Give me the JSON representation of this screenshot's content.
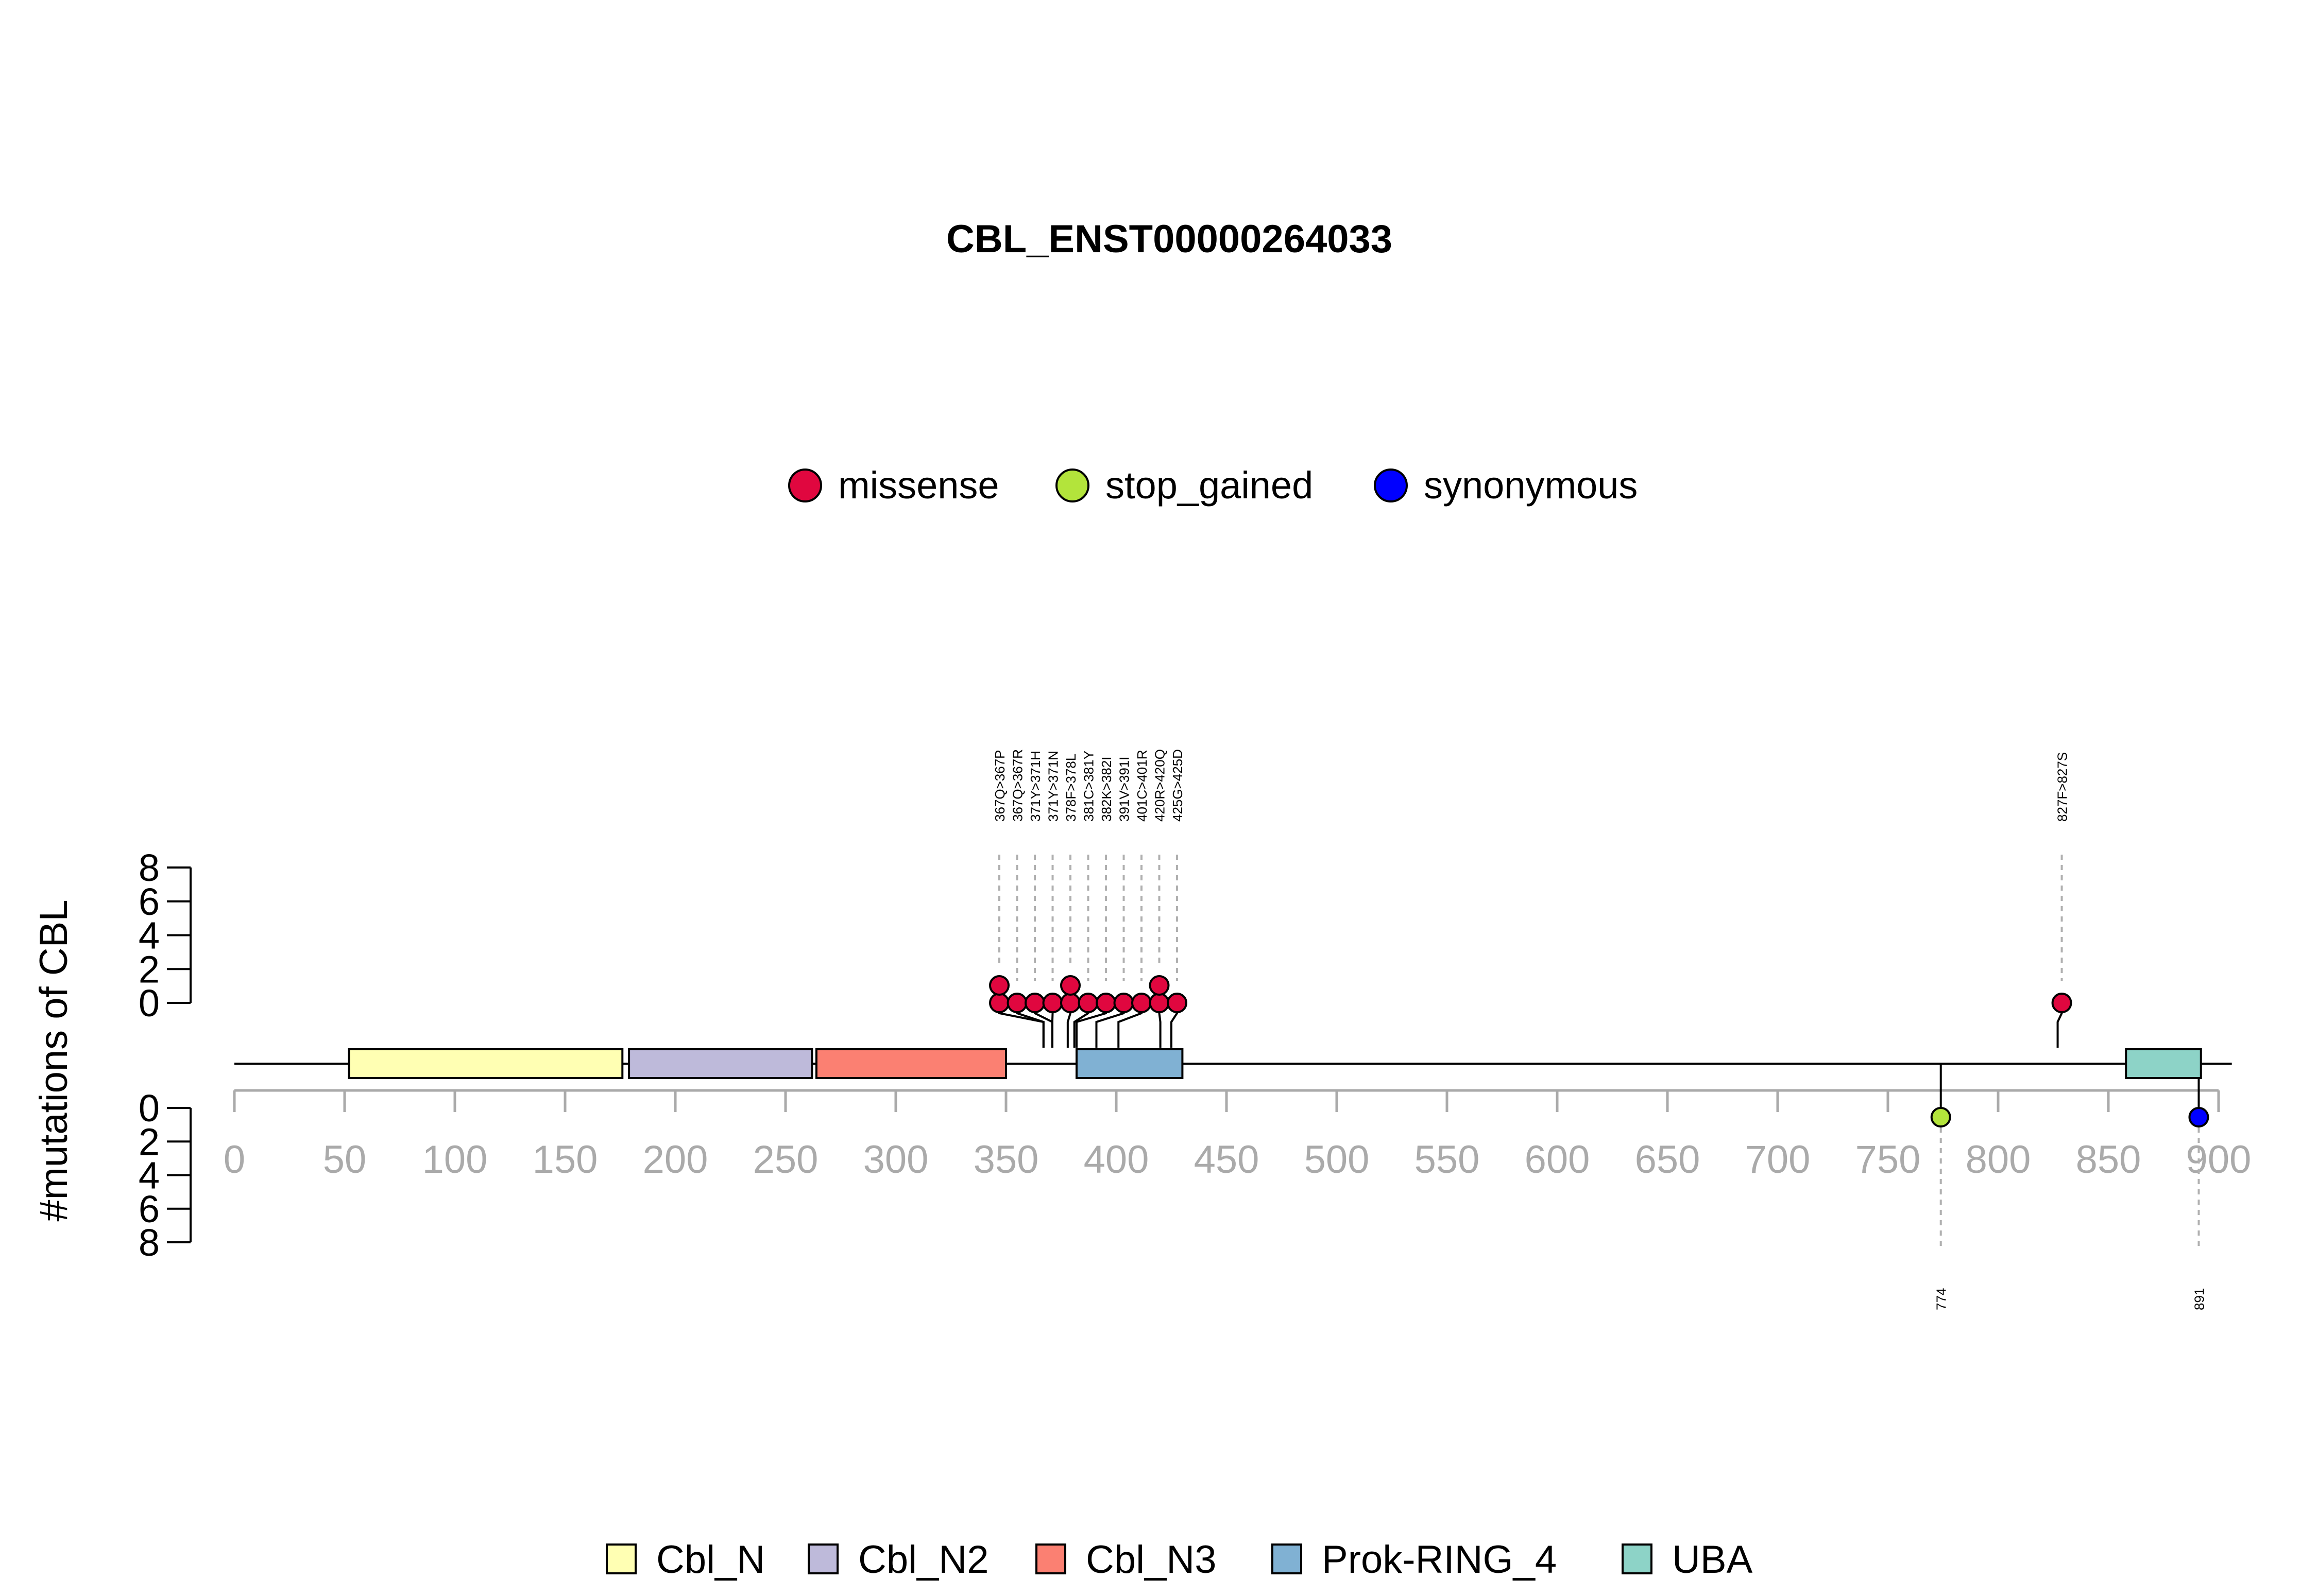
{
  "chart_data": {
    "type": "lollipop",
    "title": "CBL_ENST00000264033",
    "ylabel": "#mutations of CBL",
    "x_axis": {
      "min": 0,
      "max": 900,
      "ticks": [
        "0",
        "50",
        "100",
        "150",
        "200",
        "250",
        "300",
        "350",
        "400",
        "450",
        "500",
        "550",
        "600",
        "650",
        "700",
        "750",
        "800",
        "850",
        "900"
      ]
    },
    "y_axis_top": {
      "min": 0,
      "max": 8,
      "ticks": [
        "0",
        "2",
        "4",
        "6",
        "8"
      ]
    },
    "y_axis_bottom": {
      "min": 0,
      "max": 8,
      "ticks": [
        "0",
        "2",
        "4",
        "6",
        "8"
      ]
    },
    "protein_length": 906,
    "mutation_types": [
      {
        "name": "missense",
        "color": "#e0073f"
      },
      {
        "name": "stop_gained",
        "color": "#b3e43b"
      },
      {
        "name": "synonymous",
        "color": "#0000ff"
      }
    ],
    "domains": [
      {
        "name": "Cbl_N",
        "start": 52,
        "end": 176,
        "color": "#ffffb3"
      },
      {
        "name": "Cbl_N2",
        "start": 179,
        "end": 262,
        "color": "#bebada"
      },
      {
        "name": "Cbl_N3",
        "start": 264,
        "end": 350,
        "color": "#fb8072"
      },
      {
        "name": "Prok-RING_4",
        "start": 382,
        "end": 430,
        "color": "#80b1d3"
      },
      {
        "name": "UBA",
        "start": 858,
        "end": 892,
        "color": "#8dd3c7"
      }
    ],
    "mutations_top": [
      {
        "label": "367Q>367P",
        "position": 367,
        "count": 2,
        "type": "missense"
      },
      {
        "label": "367Q>367R",
        "position": 367,
        "count": 1,
        "type": "missense"
      },
      {
        "label": "371Y>371H",
        "position": 371,
        "count": 1,
        "type": "missense"
      },
      {
        "label": "371Y>371N",
        "position": 371,
        "count": 1,
        "type": "missense"
      },
      {
        "label": "378F>378L",
        "position": 378,
        "count": 2,
        "type": "missense"
      },
      {
        "label": "381C>381Y",
        "position": 381,
        "count": 1,
        "type": "missense"
      },
      {
        "label": "382K>382I",
        "position": 382,
        "count": 1,
        "type": "missense"
      },
      {
        "label": "391V>391I",
        "position": 391,
        "count": 1,
        "type": "missense"
      },
      {
        "label": "401C>401R",
        "position": 401,
        "count": 1,
        "type": "missense"
      },
      {
        "label": "420R>420Q",
        "position": 420,
        "count": 2,
        "type": "missense"
      },
      {
        "label": "425G>425D",
        "position": 425,
        "count": 1,
        "type": "missense"
      },
      {
        "label": "827F>827S",
        "position": 827,
        "count": 1,
        "type": "missense"
      }
    ],
    "mutations_bottom": [
      {
        "label": "774",
        "position": 774,
        "count": 1,
        "type": "stop_gained"
      },
      {
        "label": "891",
        "position": 891,
        "count": 1,
        "type": "synonymous"
      }
    ]
  }
}
